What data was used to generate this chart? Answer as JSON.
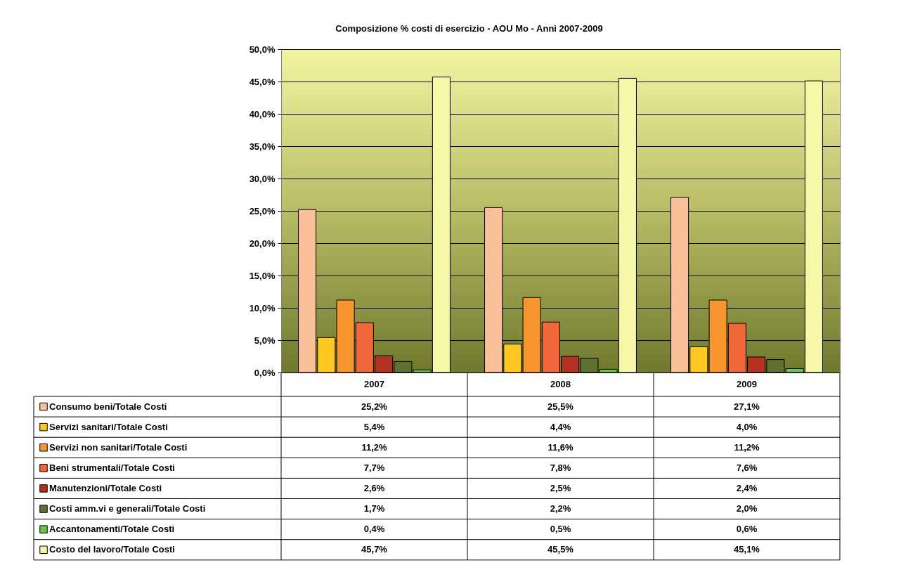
{
  "chart_data": {
    "type": "bar",
    "title": "Composizione % costi di esercizio - AOU Mo - Anni 2007-2009",
    "categories": [
      "2007",
      "2008",
      "2009"
    ],
    "series": [
      {
        "name": "Consumo beni/Totale Costi",
        "color": "#f9c09a",
        "values": [
          25.2,
          25.5,
          27.1
        ],
        "value_labels": [
          "25,2%",
          "25,5%",
          "27,1%"
        ]
      },
      {
        "name": "Servizi sanitari/Totale Costi",
        "color": "#ffc822",
        "values": [
          5.4,
          4.4,
          4.0
        ],
        "value_labels": [
          "5,4%",
          "4,4%",
          "4,0%"
        ]
      },
      {
        "name": "Servizi non sanitari/Totale Costi",
        "color": "#f7952f",
        "values": [
          11.2,
          11.6,
          11.2
        ],
        "value_labels": [
          "11,2%",
          "11,6%",
          "11,2%"
        ]
      },
      {
        "name": "Beni strumentali/Totale Costi",
        "color": "#f0683a",
        "values": [
          7.7,
          7.8,
          7.6
        ],
        "value_labels": [
          "7,7%",
          "7,8%",
          "7,6%"
        ]
      },
      {
        "name": "Manutenzioni/Totale Costi",
        "color": "#b33222",
        "values": [
          2.6,
          2.5,
          2.4
        ],
        "value_labels": [
          "2,6%",
          "2,5%",
          "2,4%"
        ]
      },
      {
        "name": "Costi amm.vi e generali/Totale Costi",
        "color": "#5f7030",
        "values": [
          1.7,
          2.2,
          2.0
        ],
        "value_labels": [
          "1,7%",
          "2,2%",
          "2,0%"
        ]
      },
      {
        "name": "Accantonamenti/Totale Costi",
        "color": "#6cc544",
        "values": [
          0.4,
          0.5,
          0.6
        ],
        "value_labels": [
          "0,4%",
          "0,5%",
          "0,6%"
        ]
      },
      {
        "name": "Costo del lavoro/Totale Costi",
        "color": "#f7f7a8",
        "values": [
          45.7,
          45.5,
          45.1
        ],
        "value_labels": [
          "45,7%",
          "45,5%",
          "45,1%"
        ]
      }
    ],
    "ylim": [
      0,
      50
    ],
    "yticks": [
      {
        "value": 0,
        "label": "0,0%"
      },
      {
        "value": 5,
        "label": "5,0%"
      },
      {
        "value": 10,
        "label": "10,0%"
      },
      {
        "value": 15,
        "label": "15,0%"
      },
      {
        "value": 20,
        "label": "20,0%"
      },
      {
        "value": 25,
        "label": "25,0%"
      },
      {
        "value": 30,
        "label": "30,0%"
      },
      {
        "value": 35,
        "label": "35,0%"
      },
      {
        "value": 40,
        "label": "40,0%"
      },
      {
        "value": 45,
        "label": "45,0%"
      },
      {
        "value": 50,
        "label": "50,0%"
      }
    ],
    "grid": "y",
    "legend": "bottom left"
  }
}
